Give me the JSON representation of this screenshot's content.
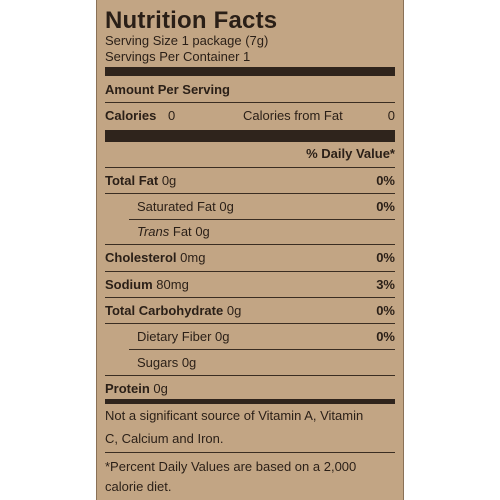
{
  "title": "Nutrition Facts",
  "serving_size": "Serving Size 1 package (7g)",
  "servings_per_container": "Servings Per Container 1",
  "amount_per_serving": "Amount Per Serving",
  "calories_label": "Calories",
  "calories_value": "0",
  "calories_from_fat_label": "Calories from Fat",
  "calories_from_fat_value": "0",
  "daily_value_header": "% Daily Value*",
  "nutrients": [
    {
      "name": "Total Fat",
      "amount": "0g",
      "pct": "0%"
    },
    {
      "name": "Saturated Fat",
      "amount": "0g",
      "pct": "0%"
    },
    {
      "name": "Trans",
      "suffix": "Fat",
      "amount": "0g",
      "pct": ""
    },
    {
      "name": "Cholesterol",
      "amount": "0mg",
      "pct": "0%"
    },
    {
      "name": "Sodium",
      "amount": "80mg",
      "pct": "3%"
    },
    {
      "name": "Total Carbohydrate",
      "amount": "0g",
      "pct": "0%"
    },
    {
      "name": "Dietary Fiber",
      "amount": "0g",
      "pct": "0%"
    },
    {
      "name": "Sugars",
      "amount": "0g",
      "pct": ""
    },
    {
      "name": "Protein",
      "amount": "0g",
      "pct": ""
    }
  ],
  "vitamin_note_line1": "Not a significant source of Vitamin A, Vitamin",
  "vitamin_note_line2": "C, Calcium and Iron.",
  "footnote_line1": "*Percent Daily Values are based on a 2,000",
  "footnote_line2": "calorie diet."
}
